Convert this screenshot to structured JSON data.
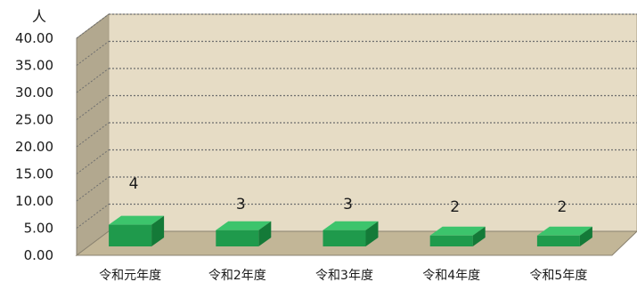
{
  "chart_data": {
    "type": "bar",
    "unit_label": "人",
    "categories": [
      "令和元年度",
      "令和2年度",
      "令和3年度",
      "令和4年度",
      "令和5年度"
    ],
    "values": [
      4,
      3,
      3,
      2,
      2
    ],
    "data_labels": [
      "4",
      "3",
      "3",
      "2",
      "2"
    ],
    "yticks": [
      "0.00",
      "5.00",
      "10.00",
      "15.00",
      "20.00",
      "25.00",
      "30.00",
      "35.00",
      "40.00"
    ],
    "ylim": [
      0,
      40
    ],
    "grid": true,
    "three_d": true,
    "colors": {
      "bar_front": "#1f9a4c",
      "bar_top": "#3cc46c",
      "bar_side": "#147a38",
      "back_wall": "#e6dcc5",
      "side_wall": "#b2a88f",
      "floor": "#c2b697",
      "grid": "#6e6e6e"
    }
  }
}
